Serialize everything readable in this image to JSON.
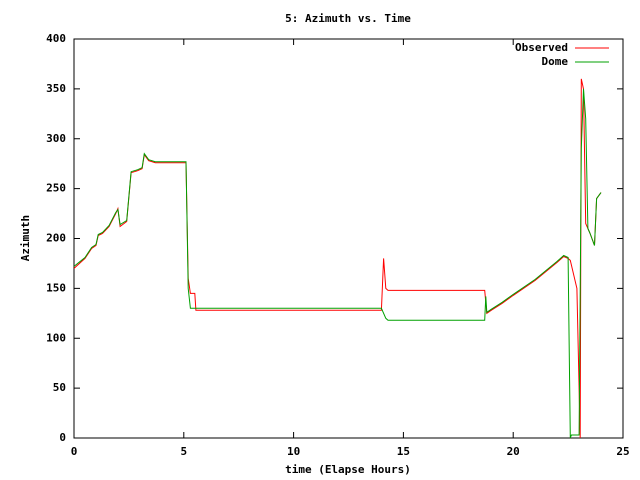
{
  "chart_data": {
    "type": "line",
    "title": "5: Azimuth vs. Time",
    "x_label": "time (Elapse Hours)",
    "y_label": "Azimuth",
    "xlim": [
      0,
      25
    ],
    "xticks": [
      0,
      5,
      10,
      15,
      20,
      25
    ],
    "ylim": [
      0,
      400
    ],
    "yticks": [
      0,
      50,
      100,
      150,
      200,
      250,
      300,
      350,
      400
    ],
    "legend": "top-right",
    "series": [
      {
        "name": "Observed",
        "color": "#ff0000",
        "x": [
          0,
          0.5,
          0.8,
          1.0,
          1.1,
          1.3,
          1.6,
          1.9,
          2.0,
          2.1,
          2.4,
          2.6,
          2.9,
          3.1,
          3.2,
          3.4,
          3.7,
          5.1,
          5.2,
          5.3,
          5.5,
          5.55,
          14.0,
          14.1,
          14.2,
          14.3,
          18.7,
          18.8,
          19.0,
          19.5,
          20.0,
          21.0,
          22.0,
          22.3,
          22.5,
          22.6,
          22.9,
          23.05,
          23.1,
          23.2,
          23.3,
          23.4,
          23.5,
          23.7,
          23.8,
          24.0
        ],
        "values": [
          170,
          180,
          190,
          193,
          203,
          205,
          212,
          225,
          230,
          212,
          217,
          266,
          268,
          270,
          284,
          278,
          276,
          276,
          160,
          145,
          145,
          128,
          128,
          180,
          150,
          148,
          148,
          125,
          128,
          135,
          143,
          158,
          176,
          182,
          180,
          178,
          150,
          0,
          360,
          350,
          215,
          210,
          205,
          193,
          240,
          246
        ]
      },
      {
        "name": "Dome",
        "color": "#00a000",
        "x": [
          0,
          0.5,
          0.8,
          1.0,
          1.1,
          1.3,
          1.6,
          1.9,
          2.0,
          2.1,
          2.4,
          2.6,
          2.9,
          3.1,
          3.2,
          3.4,
          3.7,
          5.1,
          5.2,
          5.3,
          14.0,
          14.2,
          14.3,
          18.7,
          18.75,
          18.8,
          19.0,
          19.5,
          20.0,
          21.0,
          22.0,
          22.3,
          22.5,
          22.6,
          22.65,
          23.0,
          23.1,
          23.2,
          23.3,
          23.4,
          23.5,
          23.7,
          23.8,
          24.0
        ],
        "values": [
          172,
          181,
          191,
          194,
          204,
          206,
          213,
          226,
          229,
          214,
          218,
          267,
          269,
          271,
          285,
          279,
          277,
          277,
          150,
          130,
          130,
          120,
          118,
          118,
          142,
          126,
          129,
          136,
          144,
          159,
          177,
          183,
          181,
          0,
          3,
          3,
          290,
          350,
          320,
          210,
          205,
          193,
          240,
          246
        ]
      }
    ]
  }
}
